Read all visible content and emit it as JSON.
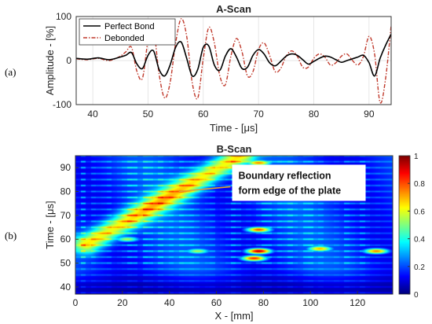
{
  "panel_labels": [
    "(a)",
    "(b)"
  ],
  "chart_data": [
    {
      "type": "line",
      "title": "A-Scan",
      "xlabel": "Time - [μs]",
      "ylabel": "Amplitude - [%]",
      "xlim": [
        37,
        94
      ],
      "ylim": [
        -100,
        100
      ],
      "xticks": [
        40,
        50,
        60,
        70,
        80,
        90
      ],
      "yticks": [
        -100,
        0,
        100
      ],
      "grid": true,
      "legend_position": "top-left",
      "series": [
        {
          "name": "Perfect Bond",
          "color": "#000000",
          "style": "solid",
          "x": [
            37,
            39,
            41,
            43,
            45,
            46,
            47,
            48,
            49,
            50,
            51,
            52,
            53,
            54,
            55,
            56,
            57,
            58,
            59,
            60,
            61,
            62,
            63,
            64,
            65,
            66,
            67,
            68,
            69,
            70,
            71,
            72,
            73,
            74,
            75,
            76,
            77,
            78,
            79,
            80,
            81,
            82,
            83,
            84,
            85,
            86,
            87,
            88,
            89,
            90,
            91,
            92,
            93,
            94
          ],
          "y": [
            5,
            3,
            6,
            2,
            8,
            12,
            18,
            -8,
            -18,
            12,
            22,
            -20,
            -35,
            -10,
            30,
            42,
            5,
            -35,
            -20,
            30,
            33,
            -10,
            -22,
            10,
            27,
            8,
            -18,
            -15,
            12,
            25,
            15,
            -5,
            -12,
            -2,
            10,
            15,
            12,
            2,
            -8,
            -2,
            5,
            10,
            8,
            2,
            -4,
            0,
            4,
            8,
            12,
            -5,
            -35,
            5,
            35,
            60
          ]
        },
        {
          "name": "Debonded",
          "color": "#c0392b",
          "style": "dashdot",
          "x": [
            37,
            39,
            41,
            43,
            45,
            46,
            47,
            48,
            49,
            50,
            51,
            52,
            53,
            54,
            55,
            56,
            57,
            58,
            59,
            60,
            61,
            62,
            63,
            64,
            65,
            66,
            67,
            68,
            69,
            70,
            71,
            72,
            73,
            74,
            75,
            76,
            77,
            78,
            79,
            80,
            81,
            82,
            83,
            84,
            85,
            86,
            87,
            88,
            89,
            90,
            91,
            92,
            93,
            94
          ],
          "y": [
            4,
            2,
            5,
            0,
            10,
            20,
            30,
            -25,
            -40,
            45,
            70,
            -30,
            -85,
            -50,
            40,
            95,
            55,
            -50,
            -85,
            5,
            75,
            40,
            -35,
            -55,
            10,
            50,
            20,
            -35,
            -25,
            25,
            40,
            12,
            -25,
            -18,
            10,
            22,
            10,
            -15,
            -15,
            5,
            15,
            8,
            -10,
            -5,
            10,
            15,
            0,
            -10,
            10,
            55,
            15,
            -95,
            -40,
            80
          ]
        }
      ]
    },
    {
      "type": "heatmap",
      "title": "B-Scan",
      "xlabel": "X - [mm]",
      "ylabel": "Time - [μs]",
      "xlim": [
        0,
        135
      ],
      "ylim": [
        37,
        95
      ],
      "xticks": [
        0,
        20,
        40,
        60,
        80,
        100,
        120
      ],
      "yticks": [
        40,
        50,
        60,
        70,
        80,
        90
      ],
      "colorbar": {
        "range": [
          0,
          1
        ],
        "ticks": [
          0,
          0.2,
          0.4,
          0.6,
          0.8,
          1
        ],
        "tick_labels": [
          "0",
          "0.2",
          "0.4",
          "0.6",
          "0.8",
          "1"
        ],
        "colormap": "jet"
      },
      "annotation": {
        "lines": [
          "Boundary reflection",
          "form edge of the plate"
        ],
        "arrow_from": [
          66,
          82
        ],
        "arrow_to": [
          44,
          80
        ]
      },
      "reflection_band": {
        "start": [
          5,
          58
        ],
        "end": [
          70,
          95
        ],
        "intensity": 0.5
      },
      "strong_spots": [
        {
          "x": 78,
          "t": 55,
          "v": 0.95
        },
        {
          "x": 76,
          "t": 52,
          "v": 0.85
        },
        {
          "x": 78,
          "t": 64,
          "v": 0.8
        },
        {
          "x": 104,
          "t": 56,
          "v": 0.7
        },
        {
          "x": 128,
          "t": 55,
          "v": 0.75
        },
        {
          "x": 78,
          "t": 92,
          "v": 0.75
        },
        {
          "x": 22,
          "t": 60,
          "v": 0.55
        },
        {
          "x": 52,
          "t": 55,
          "v": 0.55
        },
        {
          "x": 105,
          "t": 90,
          "v": 0.5
        }
      ]
    }
  ]
}
